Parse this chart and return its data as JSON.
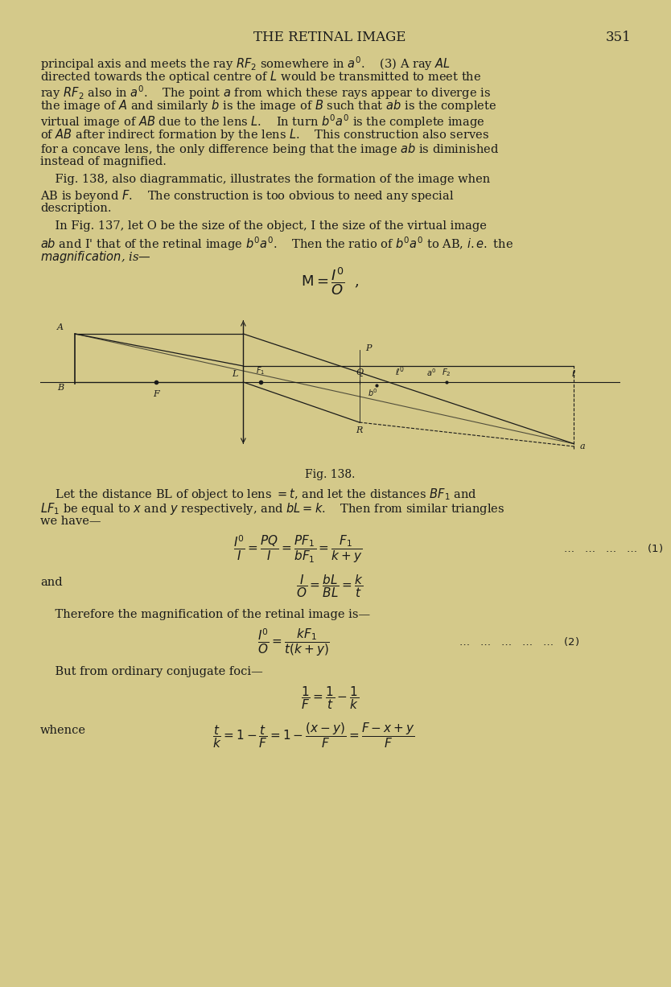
{
  "bg_color": "#d4c98a",
  "text_color": "#1a1a1a",
  "title": "THE RETINAL IMAGE",
  "page_number": "351",
  "para1": "principal axis and meets the ray $RF_2$ somewhere in $a'$. (3) A ray $AL$\ndirected towards the optical centre of $L$ would be transmitted to meet the\nray $RF_2$ also in $a'$. The point $a$ from which these rays appear to diverge is\nthe image of $A$ and similarly $b$ is the image of $B$ such that $ab$ is the complete\nvirtual image of $AB$ due to the lens $L$. In turn $b'a'$ is the complete image\nof $AB$ after indirect formation by the lens $L$. This construction also serves\nfor a concave lens, the only difference being that the image $ab$ is diminished\ninstead of magnified.",
  "para2": "Fig. 138, also diagrammatic, illustrates the formation of the image when\nAB is beyond $F$. The construction is too obvious to need any special\ndescription.",
  "para3": "In Fig. 137, let O be the size of the object, I the size of the virtual image\n$ab$ and I' that of the retinal image $b'a'$. Then the ratio of $b'a'$ to AB, $i.e.$ the\n$magnification$, is—",
  "magnification_formula": "M=\\frac{I'}{O}",
  "fig_caption": "Fig. 138.",
  "para4": "Let the distance BL of object to lens $=t$, and let the distances $BF_1$ and\n$LF_1$ be equal to $x$ and $y$ respectively, and $bL=k$. Then from similar triangles\nwe have—",
  "eq1_lhs": "\\frac{I'}{I} = \\frac{PQ}{I} = \\frac{PF_1}{bF_1} = \\frac{F_1}{k+y}",
  "eq1_rhs": "\\ldots \\quad \\ldots \\quad \\ldots \\quad \\ldots \\quad (1)",
  "and_text": "and",
  "eq2": "\\frac{I}{O} = \\frac{bL}{BL} = \\frac{k}{t}",
  "para5": "Therefore the magnification of the retinal image is—",
  "eq3_lhs": "\\frac{I'}{O} = \\frac{kF_1}{t(k+y)}",
  "eq3_rhs": "\\ldots \\quad \\ldots \\quad \\ldots \\quad \\ldots \\quad \\ldots \\quad (2)",
  "para6": "But from ordinary conjugate foci—",
  "eq4": "\\frac{1}{F} = \\frac{1}{t} - \\frac{1}{k}",
  "whence_text": "whence",
  "eq5": "\\frac{t}{k} = 1 - \\frac{t}{F} = 1 - \\frac{(x-y)}{F} = \\frac{F - x + y}{F}"
}
